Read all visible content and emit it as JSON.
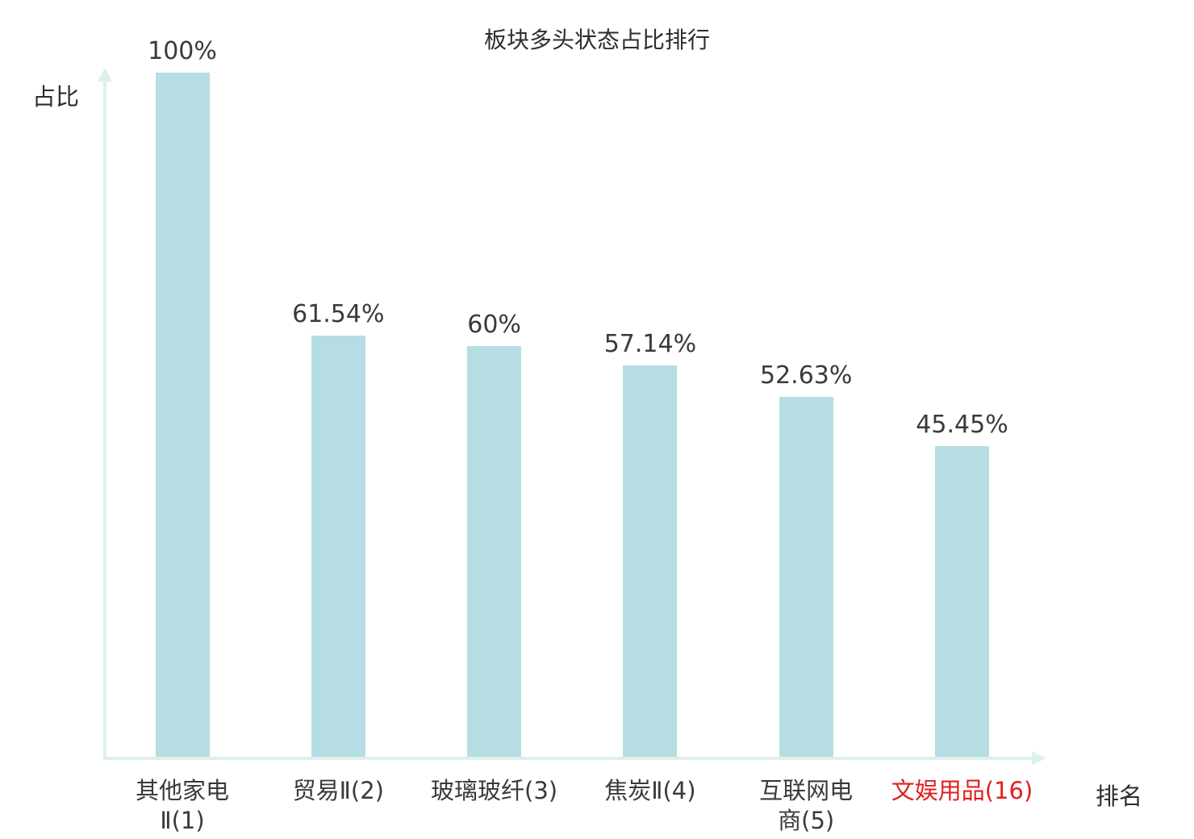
{
  "chart_data": {
    "type": "bar",
    "title": "板块多头状态占比排行",
    "ylabel": "占比",
    "xlabel": "排名",
    "ylim": [
      0,
      100
    ],
    "grid": false,
    "legend": false,
    "categories": [
      "其他家电Ⅱ(1)",
      "贸易Ⅱ(2)",
      "玻璃玻纤(3)",
      "焦炭Ⅱ(4)",
      "互联网电商(5)",
      "文娱用品(16)"
    ],
    "category_display_lines": [
      [
        "其他家电",
        "Ⅱ(1)"
      ],
      [
        "贸易Ⅱ(2)"
      ],
      [
        "玻璃玻纤(3)"
      ],
      [
        "焦炭Ⅱ(4)"
      ],
      [
        "互联网电",
        "商(5)"
      ],
      [
        "文娱用品(16)"
      ]
    ],
    "values": [
      100,
      61.54,
      60,
      57.14,
      52.63,
      45.45
    ],
    "value_labels": [
      "100%",
      "61.54%",
      "60%",
      "57.14%",
      "52.63%",
      "45.45%"
    ],
    "highlight_index": 5,
    "colors": {
      "bar": "#b6dde3",
      "axis": "#def0ec",
      "text": "#3a3a3a",
      "highlight": "#e02020"
    }
  }
}
